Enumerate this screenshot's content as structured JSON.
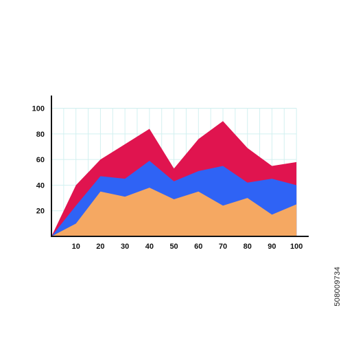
{
  "chart_data": {
    "type": "area",
    "stacked": true,
    "title": "",
    "xlabel": "",
    "ylabel": "",
    "x": [
      0,
      10,
      20,
      30,
      40,
      50,
      60,
      70,
      80,
      90,
      100
    ],
    "x_tick_labels": [
      "10",
      "20",
      "30",
      "40",
      "50",
      "60",
      "70",
      "80",
      "90",
      "100"
    ],
    "y_tick_labels": [
      "20",
      "40",
      "60",
      "80",
      "100"
    ],
    "xlim": [
      0,
      105
    ],
    "ylim": [
      0,
      110
    ],
    "grid": true,
    "legend": "none",
    "series": [
      {
        "values": [
          0,
          10,
          35,
          31,
          38,
          29,
          35,
          24,
          30,
          17,
          25
        ],
        "color": "#f5a862"
      },
      {
        "values": [
          0,
          24,
          47,
          45,
          59,
          43,
          51,
          55,
          42,
          45,
          40
        ],
        "color": "#2f63f5"
      },
      {
        "values": [
          0,
          40,
          60,
          72,
          84,
          53,
          76,
          90,
          69,
          55,
          58
        ],
        "color": "#e0144f"
      }
    ],
    "grid_color": "#d2f0f0",
    "axis_color": "#111111"
  },
  "watermark": {
    "id": "508009734"
  }
}
